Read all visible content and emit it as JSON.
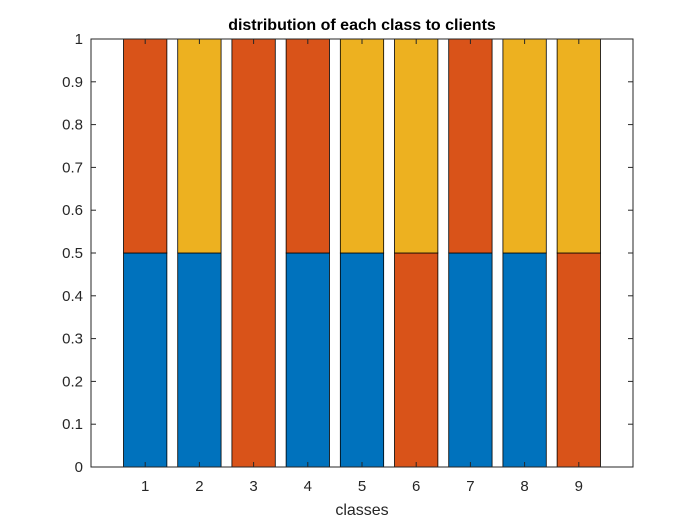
{
  "chart_data": {
    "type": "bar",
    "stacked": true,
    "title": "distribution of each class to clients",
    "xlabel": "classes",
    "ylabel": "",
    "categories": [
      "1",
      "2",
      "3",
      "4",
      "5",
      "6",
      "7",
      "8",
      "9"
    ],
    "ylim": [
      0,
      1
    ],
    "yticks": [
      "0",
      "0.1",
      "0.2",
      "0.3",
      "0.4",
      "0.5",
      "0.6",
      "0.7",
      "0.8",
      "0.9",
      "1"
    ],
    "grid": false,
    "legend": "none",
    "series": [
      {
        "values": [
          0.5,
          0.5,
          0,
          0.5,
          0.5,
          0,
          0.5,
          0.5,
          0
        ],
        "color": "#0072BD"
      },
      {
        "values": [
          0.5,
          0,
          1.0,
          0.5,
          0,
          0.5,
          0.5,
          0,
          0.5
        ],
        "color": "#D95319"
      },
      {
        "values": [
          0,
          0.5,
          0,
          0,
          0.5,
          0.5,
          0,
          0.5,
          0.5
        ],
        "color": "#EDB120"
      }
    ]
  }
}
